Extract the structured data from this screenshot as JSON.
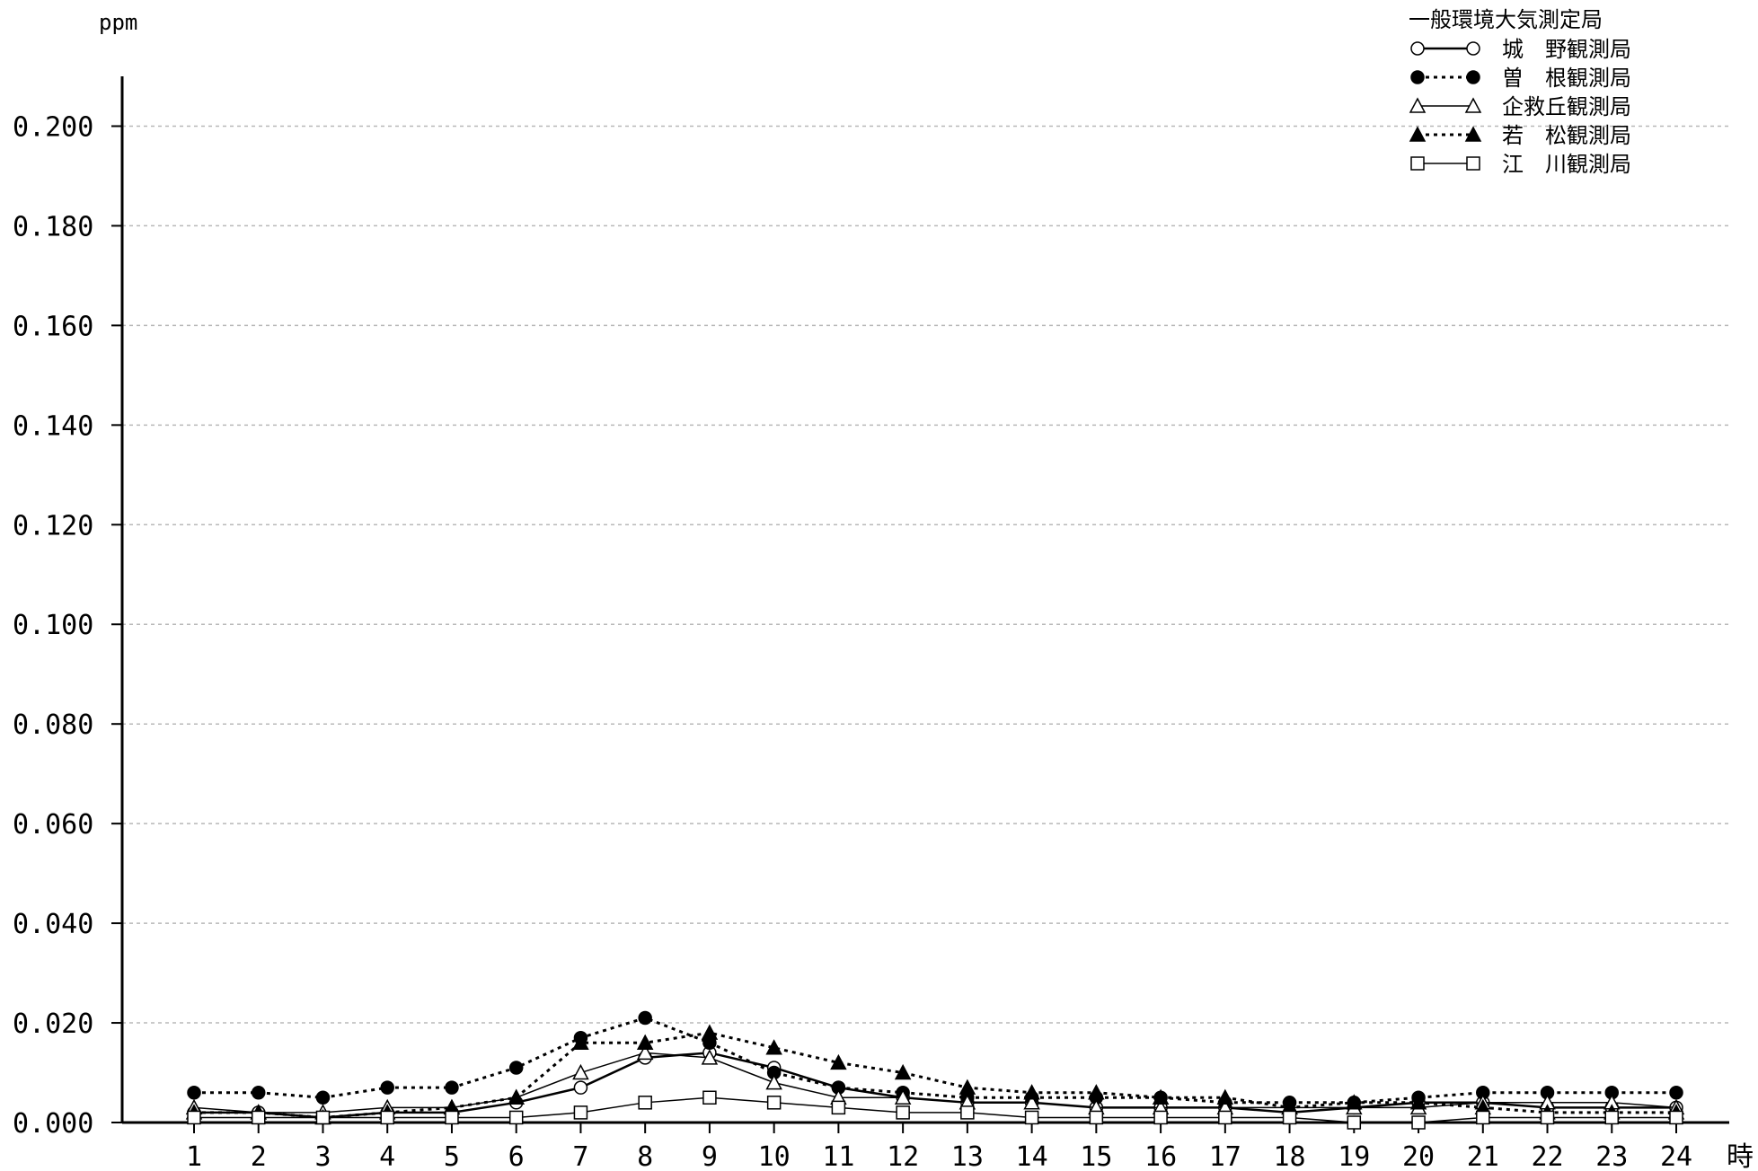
{
  "chart_data": {
    "type": "line",
    "title": "",
    "ylabel": "ppm",
    "xlabel": "時",
    "ylim": [
      0,
      0.21
    ],
    "xlim": [
      1,
      24
    ],
    "grid": true,
    "legend_position": "top-right",
    "legend_title": "一般環境大気測定局",
    "yticks": [
      "0.000",
      "0.020",
      "0.040",
      "0.060",
      "0.080",
      "0.100",
      "0.120",
      "0.140",
      "0.160",
      "0.180",
      "0.200"
    ],
    "x": [
      1,
      2,
      3,
      4,
      5,
      6,
      7,
      8,
      9,
      10,
      11,
      12,
      13,
      14,
      15,
      16,
      17,
      18,
      19,
      20,
      21,
      22,
      23,
      24
    ],
    "series": [
      {
        "name": "城　野観測局",
        "marker": "circle-open",
        "line": "solid",
        "values": [
          0.002,
          0.002,
          0.001,
          0.002,
          0.002,
          0.004,
          0.007,
          0.013,
          0.014,
          0.011,
          0.007,
          0.005,
          0.004,
          0.004,
          0.003,
          0.003,
          0.003,
          0.002,
          0.003,
          0.004,
          0.004,
          0.003,
          0.003,
          0.003
        ]
      },
      {
        "name": "曽　根観測局",
        "marker": "circle-filled",
        "line": "dotted",
        "values": [
          0.006,
          0.006,
          0.005,
          0.007,
          0.007,
          0.011,
          0.017,
          0.021,
          0.016,
          0.01,
          0.007,
          0.006,
          0.005,
          0.005,
          0.005,
          0.005,
          0.004,
          0.004,
          0.004,
          0.005,
          0.006,
          0.006,
          0.006,
          0.006
        ]
      },
      {
        "name": "企救丘観測局",
        "marker": "triangle-open",
        "line": "solid",
        "values": [
          0.003,
          0.002,
          0.002,
          0.003,
          0.003,
          0.005,
          0.01,
          0.014,
          0.013,
          0.008,
          0.005,
          0.005,
          0.004,
          0.004,
          0.003,
          0.003,
          0.003,
          0.003,
          0.003,
          0.003,
          0.004,
          0.004,
          0.004,
          0.003
        ]
      },
      {
        "name": "若　松観測局",
        "marker": "triangle-filled",
        "line": "dotted",
        "values": [
          0.002,
          0.002,
          0.001,
          0.002,
          0.003,
          0.005,
          0.016,
          0.016,
          0.018,
          0.015,
          0.012,
          0.01,
          0.007,
          0.006,
          0.006,
          0.005,
          0.005,
          0.003,
          0.004,
          0.004,
          0.003,
          0.002,
          0.002,
          0.002
        ]
      },
      {
        "name": "江　川観測局",
        "marker": "square-open",
        "line": "solid",
        "values": [
          0.001,
          0.001,
          0.001,
          0.001,
          0.001,
          0.001,
          0.002,
          0.004,
          0.005,
          0.004,
          0.003,
          0.002,
          0.002,
          0.001,
          0.001,
          0.001,
          0.001,
          0.001,
          0.0,
          0.0,
          0.001,
          0.001,
          0.001,
          0.001
        ]
      }
    ]
  }
}
